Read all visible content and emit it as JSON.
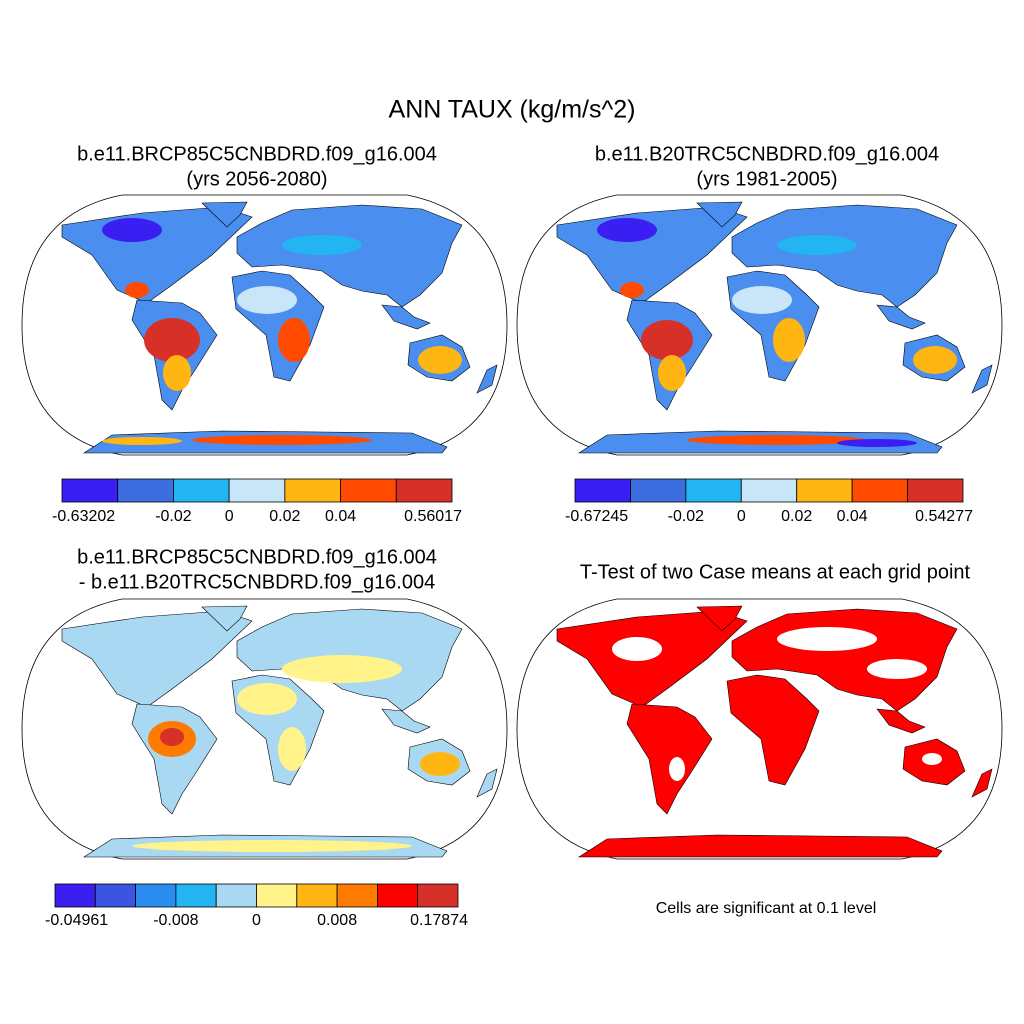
{
  "title": "ANN TAUX (kg/m/s^2)",
  "panels": [
    {
      "title": "b.e11.BRCP85C5CNBDRD.f09_g16.004",
      "subtitle": "(yrs 2056-2080)",
      "colorbar": {
        "colors": [
          "#3a1ef2",
          "#3c6ee0",
          "#22b5f2",
          "#c8e6f7",
          "#ffb612",
          "#ff4a00",
          "#d63028"
        ],
        "labels": [
          "-0.63202",
          null,
          "-0.02",
          "0",
          "0.02",
          "0.04",
          null,
          "0.56017"
        ]
      }
    },
    {
      "title": "b.e11.B20TRC5CNBDRD.f09_g16.004",
      "subtitle": "(yrs 1981-2005)",
      "colorbar": {
        "colors": [
          "#3a1ef2",
          "#3c6ee0",
          "#22b5f2",
          "#c8e6f7",
          "#ffb612",
          "#ff4a00",
          "#d63028"
        ],
        "labels": [
          "-0.67245",
          null,
          "-0.02",
          "0",
          "0.02",
          "0.04",
          null,
          "0.54277"
        ]
      }
    },
    {
      "title": "b.e11.BRCP85C5CNBDRD.f09_g16.004",
      "subtitle": "- b.e11.B20TRC5CNBDRD.f09_g16.004",
      "colorbar": {
        "colors": [
          "#3a1ef2",
          "#3c55e0",
          "#2a8ef0",
          "#22b5f2",
          "#a8d8f2",
          "#fff38a",
          "#ffb612",
          "#ff7a00",
          "#ff0000",
          "#d63028"
        ],
        "labels": [
          "-0.04961",
          null,
          null,
          "-0.008",
          null,
          "0",
          null,
          "0.008",
          null,
          null,
          "0.17874"
        ]
      }
    },
    {
      "title": "T-Test of two Case means at each grid point",
      "note": "Cells are significant at 0.1 level"
    }
  ]
}
